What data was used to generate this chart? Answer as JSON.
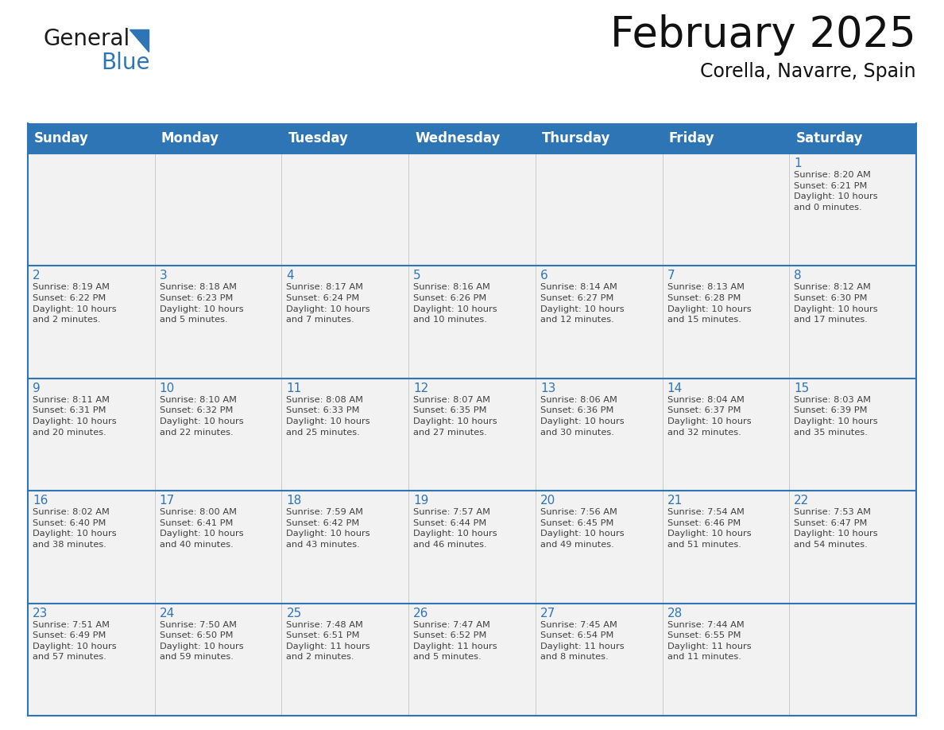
{
  "title": "February 2025",
  "subtitle": "Corella, Navarre, Spain",
  "header_bg": "#2E75B6",
  "header_text_color": "#FFFFFF",
  "cell_bg": "#F2F2F2",
  "cell_border_color": "#2E75B6",
  "day_number_color": "#2E75B6",
  "cell_text_color": "#404040",
  "days_of_week": [
    "Sunday",
    "Monday",
    "Tuesday",
    "Wednesday",
    "Thursday",
    "Friday",
    "Saturday"
  ],
  "weeks": [
    [
      {
        "day": "",
        "info": ""
      },
      {
        "day": "",
        "info": ""
      },
      {
        "day": "",
        "info": ""
      },
      {
        "day": "",
        "info": ""
      },
      {
        "day": "",
        "info": ""
      },
      {
        "day": "",
        "info": ""
      },
      {
        "day": "1",
        "info": "Sunrise: 8:20 AM\nSunset: 6:21 PM\nDaylight: 10 hours\nand 0 minutes."
      }
    ],
    [
      {
        "day": "2",
        "info": "Sunrise: 8:19 AM\nSunset: 6:22 PM\nDaylight: 10 hours\nand 2 minutes."
      },
      {
        "day": "3",
        "info": "Sunrise: 8:18 AM\nSunset: 6:23 PM\nDaylight: 10 hours\nand 5 minutes."
      },
      {
        "day": "4",
        "info": "Sunrise: 8:17 AM\nSunset: 6:24 PM\nDaylight: 10 hours\nand 7 minutes."
      },
      {
        "day": "5",
        "info": "Sunrise: 8:16 AM\nSunset: 6:26 PM\nDaylight: 10 hours\nand 10 minutes."
      },
      {
        "day": "6",
        "info": "Sunrise: 8:14 AM\nSunset: 6:27 PM\nDaylight: 10 hours\nand 12 minutes."
      },
      {
        "day": "7",
        "info": "Sunrise: 8:13 AM\nSunset: 6:28 PM\nDaylight: 10 hours\nand 15 minutes."
      },
      {
        "day": "8",
        "info": "Sunrise: 8:12 AM\nSunset: 6:30 PM\nDaylight: 10 hours\nand 17 minutes."
      }
    ],
    [
      {
        "day": "9",
        "info": "Sunrise: 8:11 AM\nSunset: 6:31 PM\nDaylight: 10 hours\nand 20 minutes."
      },
      {
        "day": "10",
        "info": "Sunrise: 8:10 AM\nSunset: 6:32 PM\nDaylight: 10 hours\nand 22 minutes."
      },
      {
        "day": "11",
        "info": "Sunrise: 8:08 AM\nSunset: 6:33 PM\nDaylight: 10 hours\nand 25 minutes."
      },
      {
        "day": "12",
        "info": "Sunrise: 8:07 AM\nSunset: 6:35 PM\nDaylight: 10 hours\nand 27 minutes."
      },
      {
        "day": "13",
        "info": "Sunrise: 8:06 AM\nSunset: 6:36 PM\nDaylight: 10 hours\nand 30 minutes."
      },
      {
        "day": "14",
        "info": "Sunrise: 8:04 AM\nSunset: 6:37 PM\nDaylight: 10 hours\nand 32 minutes."
      },
      {
        "day": "15",
        "info": "Sunrise: 8:03 AM\nSunset: 6:39 PM\nDaylight: 10 hours\nand 35 minutes."
      }
    ],
    [
      {
        "day": "16",
        "info": "Sunrise: 8:02 AM\nSunset: 6:40 PM\nDaylight: 10 hours\nand 38 minutes."
      },
      {
        "day": "17",
        "info": "Sunrise: 8:00 AM\nSunset: 6:41 PM\nDaylight: 10 hours\nand 40 minutes."
      },
      {
        "day": "18",
        "info": "Sunrise: 7:59 AM\nSunset: 6:42 PM\nDaylight: 10 hours\nand 43 minutes."
      },
      {
        "day": "19",
        "info": "Sunrise: 7:57 AM\nSunset: 6:44 PM\nDaylight: 10 hours\nand 46 minutes."
      },
      {
        "day": "20",
        "info": "Sunrise: 7:56 AM\nSunset: 6:45 PM\nDaylight: 10 hours\nand 49 minutes."
      },
      {
        "day": "21",
        "info": "Sunrise: 7:54 AM\nSunset: 6:46 PM\nDaylight: 10 hours\nand 51 minutes."
      },
      {
        "day": "22",
        "info": "Sunrise: 7:53 AM\nSunset: 6:47 PM\nDaylight: 10 hours\nand 54 minutes."
      }
    ],
    [
      {
        "day": "23",
        "info": "Sunrise: 7:51 AM\nSunset: 6:49 PM\nDaylight: 10 hours\nand 57 minutes."
      },
      {
        "day": "24",
        "info": "Sunrise: 7:50 AM\nSunset: 6:50 PM\nDaylight: 10 hours\nand 59 minutes."
      },
      {
        "day": "25",
        "info": "Sunrise: 7:48 AM\nSunset: 6:51 PM\nDaylight: 11 hours\nand 2 minutes."
      },
      {
        "day": "26",
        "info": "Sunrise: 7:47 AM\nSunset: 6:52 PM\nDaylight: 11 hours\nand 5 minutes."
      },
      {
        "day": "27",
        "info": "Sunrise: 7:45 AM\nSunset: 6:54 PM\nDaylight: 11 hours\nand 8 minutes."
      },
      {
        "day": "28",
        "info": "Sunrise: 7:44 AM\nSunset: 6:55 PM\nDaylight: 11 hours\nand 11 minutes."
      },
      {
        "day": "",
        "info": ""
      }
    ]
  ],
  "logo_general_color": "#1a1a1a",
  "logo_blue_color": "#2E75B6",
  "title_fontsize": 38,
  "subtitle_fontsize": 17,
  "header_fontsize": 12,
  "day_number_fontsize": 11,
  "cell_text_fontsize": 8.2
}
